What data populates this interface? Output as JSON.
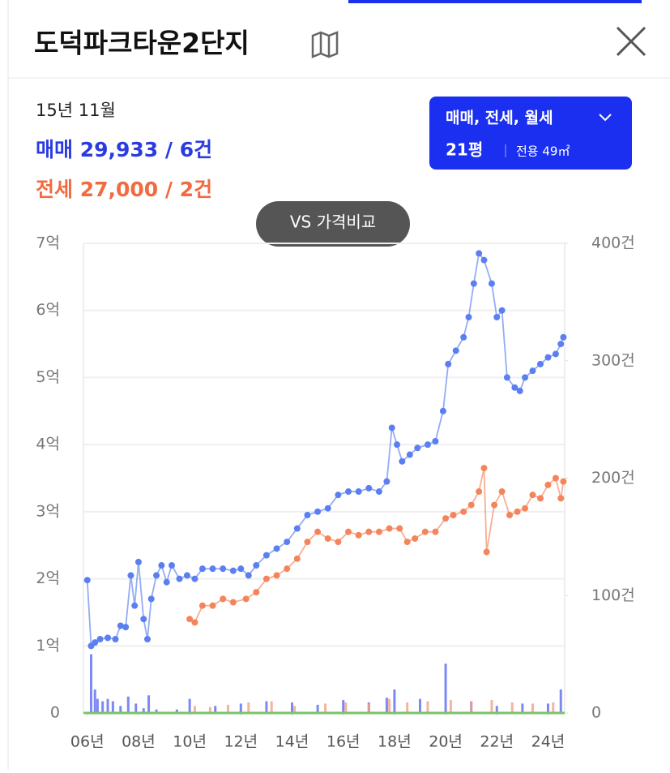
{
  "header": {
    "title": "도덕파크타운2단지"
  },
  "info": {
    "period": "15년 11월",
    "sale": "매매 29,933 / 6건",
    "jeonse": "전세 27,000 / 2건"
  },
  "button": {
    "type": "매매, 전세, 월세",
    "size_py": "21평",
    "size_area": "전용 49㎡"
  },
  "compare": "VS 가격비교",
  "chart_data": {
    "type": "line",
    "xlim": [
      5.85,
      24.65
    ],
    "xticks": [
      {
        "value": 6,
        "label": "06년"
      },
      {
        "value": 8,
        "label": "08년"
      },
      {
        "value": 10,
        "label": "10년"
      },
      {
        "value": 12,
        "label": "12년"
      },
      {
        "value": 14,
        "label": "14년"
      },
      {
        "value": 16,
        "label": "16년"
      },
      {
        "value": 18,
        "label": "18년"
      },
      {
        "value": 20,
        "label": "20년"
      },
      {
        "value": 22,
        "label": "22년"
      },
      {
        "value": 24,
        "label": "24년"
      }
    ],
    "ylim": [
      0,
      7
    ],
    "yticks": [
      0,
      {
        "value": 1,
        "label": "1억"
      },
      {
        "value": 2,
        "label": "2억"
      },
      {
        "value": 3,
        "label": "3억"
      },
      {
        "value": 4,
        "label": "4억"
      },
      {
        "value": 5,
        "label": "5억"
      },
      {
        "value": 6,
        "label": "6억"
      },
      {
        "value": 7,
        "label": "7억"
      }
    ],
    "y2lim": [
      0,
      400
    ],
    "y2ticks": [
      0,
      {
        "value": 100,
        "label": "100건"
      },
      {
        "value": 200,
        "label": "200건"
      },
      {
        "value": 300,
        "label": "300건"
      },
      {
        "value": 400,
        "label": "400건"
      }
    ],
    "grid": true,
    "series": [
      {
        "type": "bar",
        "axis": "y2",
        "color": "#5b6cf0",
        "x": [
          6.15,
          6.3,
          6.4,
          6.6,
          6.8,
          7.0,
          7.3,
          7.6,
          7.9,
          8.2,
          8.4,
          8.7,
          9.5,
          10.0,
          11.0,
          12.0,
          13.0,
          14.0,
          15.0,
          16.0,
          17.0,
          17.7,
          18.0,
          19.0,
          20.0,
          21.0,
          22.0,
          23.0,
          24.0,
          24.5
        ],
        "values": [
          50,
          20,
          12,
          10,
          12,
          10,
          6,
          14,
          8,
          4,
          15,
          3,
          3,
          12,
          6,
          8,
          10,
          9,
          7,
          11,
          9,
          13,
          20,
          12,
          42,
          10,
          6,
          8,
          8,
          20
        ]
      },
      {
        "type": "bar",
        "axis": "y2",
        "color": "#f4a083",
        "x": [
          10.2,
          10.8,
          11.5,
          12.3,
          13.2,
          14.1,
          15.3,
          16.1,
          17.0,
          17.8,
          18.5,
          19.3,
          20.2,
          21.0,
          21.8,
          22.6,
          23.4,
          24.2
        ],
        "values": [
          6,
          5,
          7,
          9,
          10,
          6,
          8,
          9,
          8,
          12,
          9,
          10,
          11,
          10,
          11,
          9,
          8,
          9
        ]
      },
      {
        "type": "line",
        "color": "#5b7ff0",
        "x": [
          6.0,
          6.15,
          6.3,
          6.5,
          6.8,
          7.1,
          7.3,
          7.5,
          7.7,
          7.85,
          8.0,
          8.2,
          8.35,
          8.5,
          8.7,
          8.9,
          9.1,
          9.3,
          9.6,
          9.9,
          10.2,
          10.5,
          10.9,
          11.3,
          11.7,
          12.0,
          12.3,
          12.6,
          13.0,
          13.4,
          13.8,
          14.2,
          14.6,
          15.0,
          15.4,
          15.8,
          16.2,
          16.6,
          17.0,
          17.4,
          17.7,
          17.9,
          18.1,
          18.3,
          18.6,
          18.9,
          19.3,
          19.6,
          19.9,
          20.1,
          20.4,
          20.7,
          20.9,
          21.1,
          21.3,
          21.5,
          21.8,
          22.0,
          22.2,
          22.4,
          22.7,
          22.9,
          23.1,
          23.4,
          23.7,
          24.0,
          24.3,
          24.5,
          24.6
        ],
        "values": [
          1.98,
          1.0,
          1.05,
          1.1,
          1.12,
          1.1,
          1.3,
          1.28,
          2.05,
          1.6,
          2.25,
          1.4,
          1.1,
          1.7,
          2.05,
          2.2,
          1.95,
          2.2,
          2.0,
          2.05,
          2.0,
          2.15,
          2.15,
          2.15,
          2.12,
          2.15,
          2.05,
          2.2,
          2.35,
          2.45,
          2.55,
          2.75,
          2.95,
          3.0,
          3.05,
          3.25,
          3.3,
          3.3,
          3.35,
          3.3,
          3.45,
          4.25,
          4.0,
          3.75,
          3.85,
          3.95,
          4.0,
          4.05,
          4.5,
          5.2,
          5.4,
          5.6,
          5.9,
          6.4,
          6.85,
          6.75,
          6.4,
          5.9,
          6.0,
          5.0,
          4.85,
          4.8,
          5.0,
          5.1,
          5.2,
          5.3,
          5.35,
          5.5,
          5.6
        ]
      },
      {
        "type": "line",
        "color": "#f4845a",
        "x": [
          10.0,
          10.2,
          10.5,
          10.9,
          11.3,
          11.7,
          12.2,
          12.6,
          13.0,
          13.4,
          13.8,
          14.2,
          14.6,
          15.0,
          15.4,
          15.8,
          16.2,
          16.6,
          17.0,
          17.4,
          17.8,
          18.2,
          18.5,
          18.8,
          19.2,
          19.6,
          20.0,
          20.3,
          20.7,
          21.0,
          21.3,
          21.5,
          21.6,
          21.9,
          22.2,
          22.5,
          22.8,
          23.1,
          23.4,
          23.7,
          24.0,
          24.3,
          24.5,
          24.6
        ],
        "values": [
          1.4,
          1.35,
          1.6,
          1.6,
          1.7,
          1.65,
          1.7,
          1.8,
          2.0,
          2.05,
          2.15,
          2.3,
          2.55,
          2.7,
          2.6,
          2.55,
          2.7,
          2.65,
          2.7,
          2.7,
          2.75,
          2.75,
          2.55,
          2.6,
          2.7,
          2.7,
          2.9,
          2.95,
          3.0,
          3.1,
          3.3,
          3.65,
          2.4,
          3.1,
          3.3,
          2.95,
          3.0,
          3.05,
          3.25,
          3.2,
          3.4,
          3.5,
          3.2,
          3.45
        ]
      }
    ]
  }
}
